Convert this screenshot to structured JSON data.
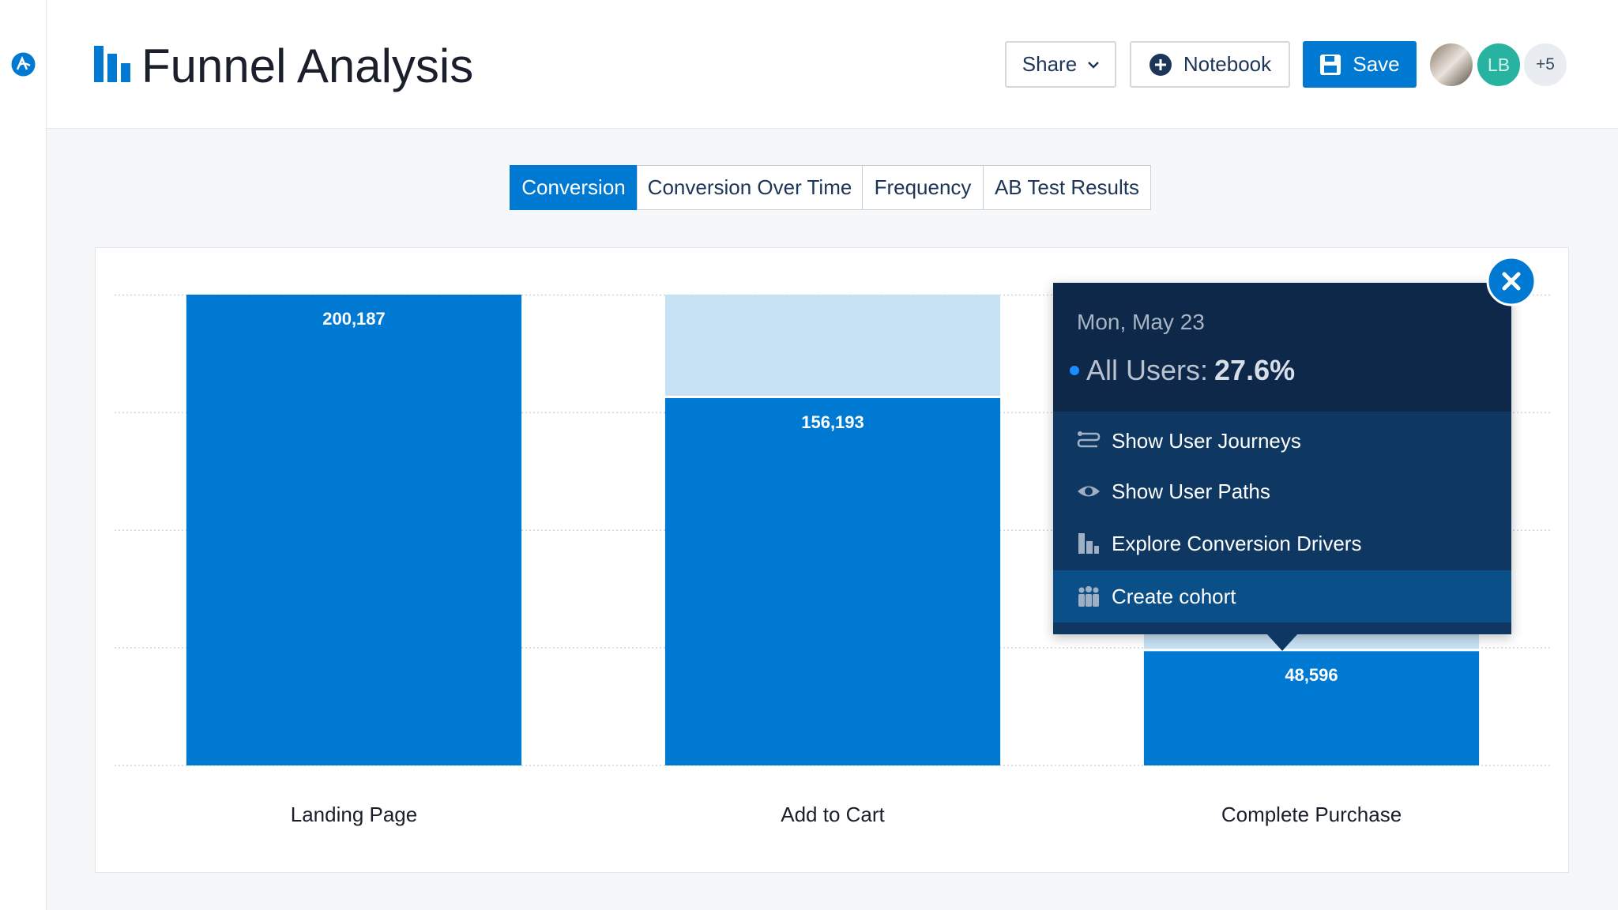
{
  "header": {
    "title": "Funnel Analysis",
    "buttons": [
      "Share",
      "Notebook",
      "Save"
    ],
    "avatars": [
      "LB",
      "+5"
    ]
  },
  "tabs": {
    "items": [
      "Conversion",
      "Conversion Over Time",
      "Frequency",
      "AB Test Results"
    ],
    "active": 0
  },
  "chart_data": {
    "type": "bar",
    "categories": [
      "Landing Page",
      "Add to Cart",
      "Complete Purchase"
    ],
    "values": [
      200187,
      156193,
      48596
    ],
    "value_labels": [
      "200,187",
      "156,193",
      "48,596"
    ],
    "color": "#0079d3",
    "dropoff_color": "#c7e1f5",
    "ylim": [
      0,
      200187
    ],
    "yticks": [
      0,
      50000,
      100000,
      150000,
      200000
    ],
    "grid": true
  },
  "tooltip": {
    "date": "Mon, May 23",
    "series": "All Users:",
    "value": "27.6%",
    "actions": [
      "Show User Journeys",
      "Show User Paths",
      "Explore Conversion Drivers",
      "Create cohort"
    ],
    "highlighted": 3
  }
}
